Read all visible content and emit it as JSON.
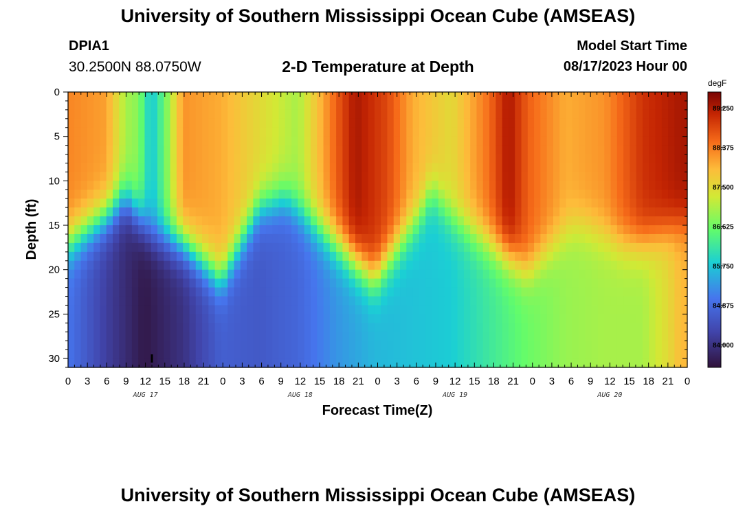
{
  "header": {
    "title": "University of Southern Mississippi Ocean Cube (AMSEAS)",
    "station_id": "DPIA1",
    "coordinates": "30.2500N  88.0750W",
    "subtitle": "2-D Temperature at Depth",
    "model_start_label": "Model Start Time",
    "model_start_value": "08/17/2023 Hour 00"
  },
  "footer": {
    "title": "University of Southern Mississippi Ocean Cube (AMSEAS)"
  },
  "chart_data": {
    "type": "heatmap",
    "title": "2-D Temperature at Depth",
    "xlabel": "Forecast Time(Z)",
    "ylabel": "Depth (ft)",
    "x_range_hours": [
      0,
      96
    ],
    "y_range_ft": [
      0,
      31
    ],
    "x_tick_labels": [
      "0",
      "3",
      "6",
      "9",
      "12",
      "15",
      "18",
      "21",
      "0",
      "3",
      "6",
      "9",
      "12",
      "15",
      "18",
      "21",
      "0",
      "3",
      "6",
      "9",
      "12",
      "15",
      "18",
      "21",
      "0",
      "3",
      "6",
      "9",
      "12",
      "15",
      "18",
      "21",
      "0"
    ],
    "date_labels": [
      {
        "label": "AUG 17",
        "hour": 12
      },
      {
        "label": "AUG 18",
        "hour": 36
      },
      {
        "label": "AUG 19",
        "hour": 60
      },
      {
        "label": "AUG 20",
        "hour": 84
      }
    ],
    "y_ticks": [
      0,
      5,
      10,
      15,
      20,
      25,
      30
    ],
    "colorbar": {
      "unit": "degF",
      "min": 83.5,
      "max": 89.6,
      "ticks": [
        "89.250",
        "88.375",
        "87.500",
        "86.625",
        "85.750",
        "84.875",
        "84.000"
      ]
    },
    "thermocline_depth_ft": [
      {
        "hour": 0,
        "depth": 17
      },
      {
        "hour": 6,
        "depth": 14
      },
      {
        "hour": 9,
        "depth": 12
      },
      {
        "hour": 13,
        "depth": 16
      },
      {
        "hour": 18,
        "depth": 17
      },
      {
        "hour": 24,
        "depth": 21
      },
      {
        "hour": 30,
        "depth": 13
      },
      {
        "hour": 34,
        "depth": 12
      },
      {
        "hour": 42,
        "depth": 17
      },
      {
        "hour": 48,
        "depth": 21
      },
      {
        "hour": 55,
        "depth": 14
      },
      {
        "hour": 57,
        "depth": 11
      },
      {
        "hour": 60,
        "depth": 14
      },
      {
        "hour": 66,
        "depth": 17
      },
      {
        "hour": 72,
        "depth": 20
      },
      {
        "hour": 79,
        "depth": 15
      },
      {
        "hour": 81,
        "depth": 15
      },
      {
        "hour": 87,
        "depth": 17
      },
      {
        "hour": 90,
        "depth": 17
      },
      {
        "hour": 96,
        "depth": 15
      }
    ],
    "surface_temp_degF": [
      {
        "hour": 0,
        "temp": 88.3
      },
      {
        "hour": 6,
        "temp": 88.1
      },
      {
        "hour": 9,
        "temp": 87.0
      },
      {
        "hour": 11,
        "temp": 86.8
      },
      {
        "hour": 13,
        "temp": 85.7
      },
      {
        "hour": 15,
        "temp": 86.5
      },
      {
        "hour": 18,
        "temp": 88.2
      },
      {
        "hour": 24,
        "temp": 88.0
      },
      {
        "hour": 30,
        "temp": 87.5
      },
      {
        "hour": 36,
        "temp": 87.0
      },
      {
        "hour": 42,
        "temp": 88.6
      },
      {
        "hour": 45,
        "temp": 89.3
      },
      {
        "hour": 50,
        "temp": 88.8
      },
      {
        "hour": 54,
        "temp": 88.0
      },
      {
        "hour": 60,
        "temp": 87.5
      },
      {
        "hour": 66,
        "temp": 88.5
      },
      {
        "hour": 69,
        "temp": 89.3
      },
      {
        "hour": 72,
        "temp": 88.6
      },
      {
        "hour": 78,
        "temp": 88.0
      },
      {
        "hour": 84,
        "temp": 88.2
      },
      {
        "hour": 90,
        "temp": 89.0
      },
      {
        "hour": 96,
        "temp": 89.3
      }
    ],
    "bottom_temp_degF": [
      {
        "hour": 0,
        "temp": 85.0
      },
      {
        "hour": 6,
        "temp": 84.2
      },
      {
        "hour": 12,
        "temp": 83.6
      },
      {
        "hour": 18,
        "temp": 84.0
      },
      {
        "hour": 24,
        "temp": 84.7
      },
      {
        "hour": 30,
        "temp": 84.6
      },
      {
        "hour": 36,
        "temp": 84.8
      },
      {
        "hour": 42,
        "temp": 85.3
      },
      {
        "hour": 48,
        "temp": 85.6
      },
      {
        "hour": 54,
        "temp": 85.7
      },
      {
        "hour": 60,
        "temp": 85.8
      },
      {
        "hour": 66,
        "temp": 86.2
      },
      {
        "hour": 72,
        "temp": 86.6
      },
      {
        "hour": 78,
        "temp": 86.9
      },
      {
        "hour": 84,
        "temp": 87.0
      },
      {
        "hour": 90,
        "temp": 87.0
      },
      {
        "hour": 94,
        "temp": 87.5
      },
      {
        "hour": 96,
        "temp": 87.9
      }
    ],
    "marker": {
      "hour": 13,
      "depth": 30
    }
  }
}
